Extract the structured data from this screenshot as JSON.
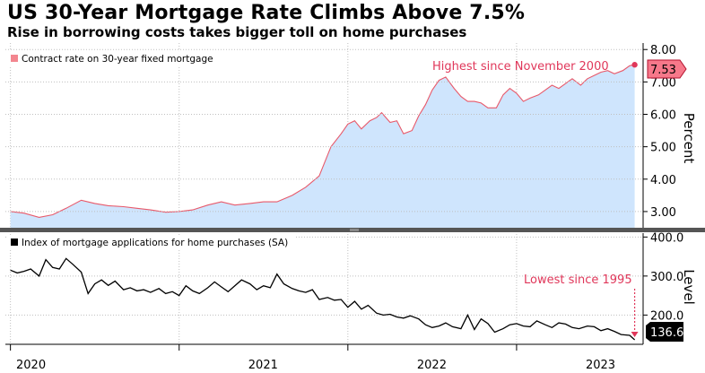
{
  "header": {
    "title": "US 30-Year Mortgage Rate Climbs Above 7.5%",
    "subtitle": "Rise in borrowing costs takes bigger toll on home purchases"
  },
  "colors": {
    "rate_line": "#e8596a",
    "rate_fill": "#cfe5fd",
    "apps_line": "#000000",
    "annotation": "#e0375a",
    "divider": "#555555"
  },
  "chart_data": [
    {
      "type": "area",
      "panel": "top",
      "legend": "Contract rate on 30-year fixed mortgage",
      "ylabel": "Percent",
      "ylim": [
        2.5,
        8.2
      ],
      "yticks": [
        "3.00",
        "4.00",
        "5.00",
        "6.00",
        "7.00",
        "8.00"
      ],
      "last_value_label": "7.53",
      "annotation": "Highest since November 2000",
      "x": [
        2020.0,
        2020.08,
        2020.17,
        2020.25,
        2020.33,
        2020.42,
        2020.5,
        2020.58,
        2020.67,
        2020.75,
        2020.83,
        2020.92,
        2021.0,
        2021.08,
        2021.17,
        2021.25,
        2021.33,
        2021.42,
        2021.5,
        2021.58,
        2021.67,
        2021.75,
        2021.83,
        2021.9,
        2021.96,
        2022.0,
        2022.04,
        2022.08,
        2022.13,
        2022.17,
        2022.2,
        2022.25,
        2022.29,
        2022.33,
        2022.38,
        2022.42,
        2022.46,
        2022.5,
        2022.54,
        2022.58,
        2022.63,
        2022.67,
        2022.71,
        2022.75,
        2022.79,
        2022.83,
        2022.88,
        2022.92,
        2022.96,
        2023.0,
        2023.04,
        2023.08,
        2023.13,
        2023.17,
        2023.21,
        2023.25,
        2023.29,
        2023.33,
        2023.38,
        2023.42,
        2023.46,
        2023.5,
        2023.54,
        2023.58,
        2023.63,
        2023.67,
        2023.7
      ],
      "values": [
        3.0,
        2.95,
        2.82,
        2.9,
        3.1,
        3.35,
        3.25,
        3.18,
        3.15,
        3.1,
        3.05,
        2.98,
        3.0,
        3.05,
        3.2,
        3.3,
        3.2,
        3.25,
        3.3,
        3.3,
        3.5,
        3.75,
        4.1,
        5.0,
        5.4,
        5.7,
        5.8,
        5.55,
        5.8,
        5.9,
        6.05,
        5.75,
        5.8,
        5.4,
        5.5,
        5.95,
        6.3,
        6.75,
        7.05,
        7.15,
        6.8,
        6.55,
        6.4,
        6.4,
        6.35,
        6.2,
        6.2,
        6.6,
        6.8,
        6.65,
        6.4,
        6.5,
        6.6,
        6.75,
        6.9,
        6.8,
        6.95,
        7.1,
        6.9,
        7.1,
        7.2,
        7.3,
        7.35,
        7.25,
        7.35,
        7.5,
        7.53
      ]
    },
    {
      "type": "line",
      "panel": "bottom",
      "legend": "Index of mortgage applications for home purchases (SA)",
      "ylabel": "Level",
      "ylim": [
        125,
        410
      ],
      "yticks": [
        "200.0",
        "300.0",
        "400.0"
      ],
      "last_value_label": "136.6",
      "annotation": "Lowest since 1995",
      "x": [
        2020.0,
        2020.04,
        2020.08,
        2020.12,
        2020.17,
        2020.21,
        2020.25,
        2020.29,
        2020.33,
        2020.37,
        2020.42,
        2020.46,
        2020.5,
        2020.54,
        2020.58,
        2020.62,
        2020.67,
        2020.71,
        2020.75,
        2020.79,
        2020.83,
        2020.88,
        2020.92,
        2020.96,
        2021.0,
        2021.04,
        2021.08,
        2021.12,
        2021.17,
        2021.21,
        2021.25,
        2021.29,
        2021.33,
        2021.37,
        2021.42,
        2021.46,
        2021.5,
        2021.54,
        2021.58,
        2021.62,
        2021.67,
        2021.71,
        2021.75,
        2021.79,
        2021.83,
        2021.88,
        2021.92,
        2021.96,
        2022.0,
        2022.04,
        2022.08,
        2022.12,
        2022.17,
        2022.21,
        2022.25,
        2022.29,
        2022.33,
        2022.37,
        2022.42,
        2022.46,
        2022.5,
        2022.54,
        2022.58,
        2022.62,
        2022.67,
        2022.71,
        2022.75,
        2022.79,
        2022.83,
        2022.87,
        2022.92,
        2022.96,
        2023.0,
        2023.04,
        2023.08,
        2023.12,
        2023.17,
        2023.21,
        2023.25,
        2023.29,
        2023.33,
        2023.37,
        2023.42,
        2023.46,
        2023.5,
        2023.54,
        2023.58,
        2023.62,
        2023.67,
        2023.7
      ],
      "values": [
        315,
        308,
        312,
        318,
        300,
        342,
        322,
        318,
        345,
        330,
        310,
        255,
        280,
        290,
        276,
        287,
        265,
        270,
        262,
        265,
        258,
        268,
        255,
        260,
        250,
        275,
        262,
        255,
        270,
        285,
        272,
        260,
        275,
        290,
        280,
        265,
        275,
        270,
        305,
        280,
        268,
        262,
        258,
        265,
        240,
        245,
        238,
        240,
        220,
        235,
        215,
        225,
        205,
        200,
        202,
        195,
        192,
        198,
        190,
        175,
        168,
        172,
        180,
        170,
        165,
        200,
        163,
        190,
        178,
        156,
        165,
        175,
        178,
        172,
        170,
        185,
        175,
        168,
        180,
        177,
        168,
        165,
        172,
        170,
        160,
        165,
        158,
        150,
        148,
        136.6
      ]
    }
  ],
  "x_axis": {
    "ticks": [
      "2020",
      "2021",
      "2022",
      "2023"
    ],
    "tick_values": [
      2020.0,
      2021.0,
      2022.0,
      2023.0
    ],
    "xlim": [
      2019.97,
      2023.75
    ]
  }
}
